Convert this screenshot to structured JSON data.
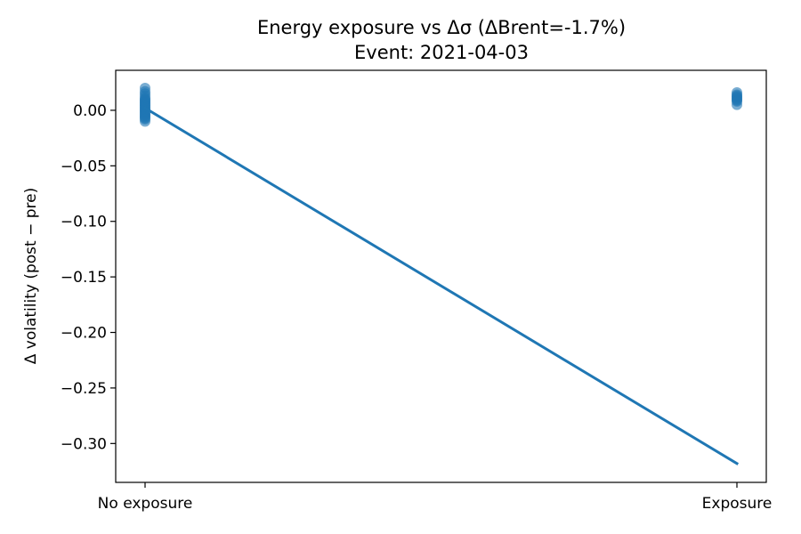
{
  "chart_data": {
    "type": "scatter",
    "title": "Energy exposure vs Δσ  (ΔBrent=-1.7%)",
    "subtitle": "Event: 2021-04-03",
    "xlabel": "",
    "ylabel": "Δ volatility (post − pre)",
    "categories": [
      "No exposure",
      "Exposure"
    ],
    "ylim": [
      -0.335,
      0.036
    ],
    "yticks": [
      0.0,
      -0.05,
      -0.1,
      -0.15,
      -0.2,
      -0.25,
      -0.3
    ],
    "ytick_labels": [
      "0.00",
      "−0.05",
      "−0.10",
      "−0.15",
      "−0.20",
      "−0.25",
      "−0.30"
    ],
    "grid": false,
    "colors": {
      "points": "#1f77b4",
      "line": "#1f77b4"
    },
    "points": [
      {
        "x": 0,
        "y": 0.02
      },
      {
        "x": 0,
        "y": 0.017
      },
      {
        "x": 0,
        "y": 0.015
      },
      {
        "x": 0,
        "y": 0.013
      },
      {
        "x": 0,
        "y": 0.011
      },
      {
        "x": 0,
        "y": 0.01
      },
      {
        "x": 0,
        "y": 0.009
      },
      {
        "x": 0,
        "y": 0.008
      },
      {
        "x": 0,
        "y": 0.007
      },
      {
        "x": 0,
        "y": 0.006
      },
      {
        "x": 0,
        "y": 0.005
      },
      {
        "x": 0,
        "y": 0.004
      },
      {
        "x": 0,
        "y": 0.003
      },
      {
        "x": 0,
        "y": 0.002
      },
      {
        "x": 0,
        "y": 0.001
      },
      {
        "x": 0,
        "y": 0.0
      },
      {
        "x": 0,
        "y": -0.001
      },
      {
        "x": 0,
        "y": -0.002
      },
      {
        "x": 0,
        "y": -0.003
      },
      {
        "x": 0,
        "y": -0.004
      },
      {
        "x": 0,
        "y": -0.005
      },
      {
        "x": 0,
        "y": -0.006
      },
      {
        "x": 0,
        "y": -0.007
      },
      {
        "x": 0,
        "y": -0.008
      },
      {
        "x": 0,
        "y": -0.01
      },
      {
        "x": 1,
        "y": 0.016
      },
      {
        "x": 1,
        "y": 0.014
      },
      {
        "x": 1,
        "y": 0.013
      },
      {
        "x": 1,
        "y": 0.012
      },
      {
        "x": 1,
        "y": 0.011
      },
      {
        "x": 1,
        "y": 0.01
      },
      {
        "x": 1,
        "y": 0.009
      },
      {
        "x": 1,
        "y": 0.008
      },
      {
        "x": 1,
        "y": 0.005
      }
    ],
    "fit_line": {
      "x": [
        0,
        1
      ],
      "y": [
        0.002,
        -0.318
      ]
    }
  }
}
